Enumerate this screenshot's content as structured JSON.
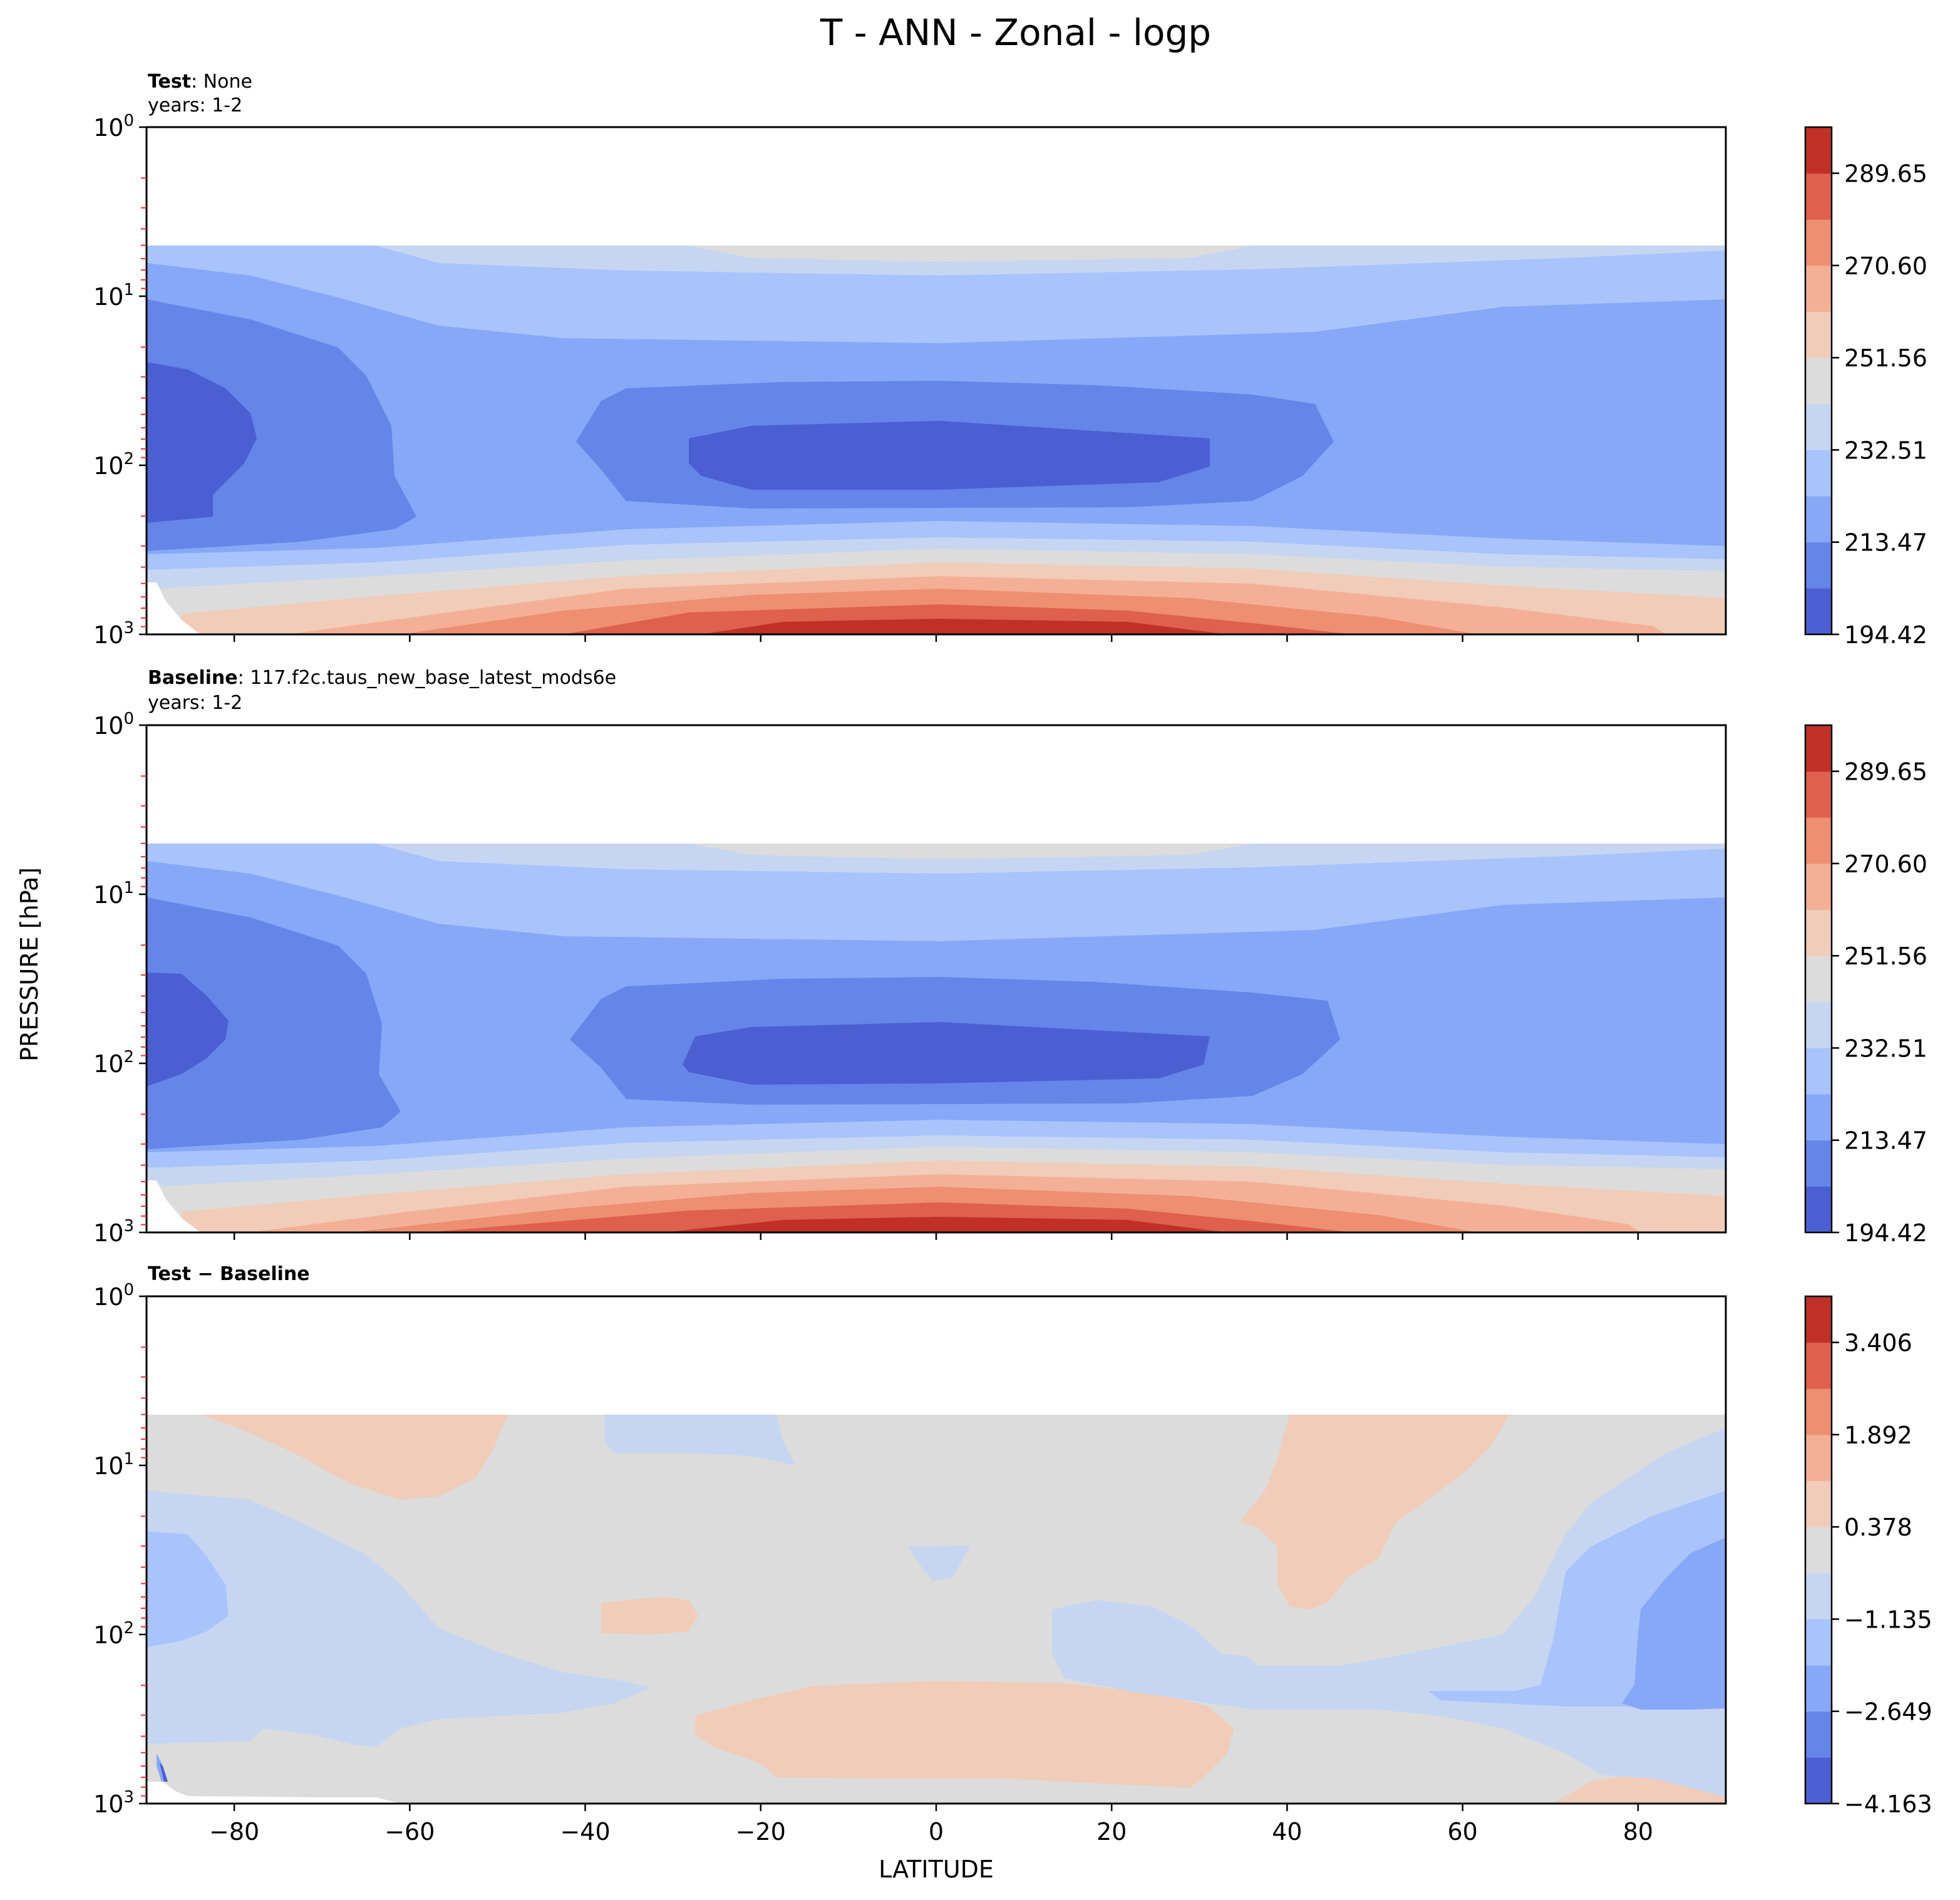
{
  "figure_title": "T - ANN - Zonal - logp",
  "xlabel": "LATITUDE",
  "ylabel": "PRESSURE [hPa]",
  "chart_data": [
    {
      "type": "heatmap",
      "subtype": "filled-contour",
      "panel_title_bold": "Test",
      "panel_title_rest": ": None",
      "panel_subtitle": "years: 1-2",
      "xlim": [
        -90,
        90
      ],
      "ylim": [
        1000,
        1
      ],
      "y_scale": "log",
      "x_ticks": [
        -80,
        -60,
        -40,
        -20,
        0,
        20,
        40,
        60,
        80
      ],
      "y_ticks": [
        {
          "base": "10",
          "exp": "0"
        },
        {
          "base": "10",
          "exp": "1"
        },
        {
          "base": "10",
          "exp": "2"
        },
        {
          "base": "10",
          "exp": "3"
        }
      ],
      "data_top_hpa": 5,
      "colorbar": {
        "levels": [
          194.42,
          213.47,
          232.51,
          251.56,
          270.6,
          289.65
        ],
        "tick_labels": [
          "194.42",
          "213.47",
          "232.51",
          "251.56",
          "270.60",
          "289.65"
        ],
        "colors": [
          "#4a5fd1",
          "#6585e8",
          "#86a8f7",
          "#a8c4fb",
          "#c6d6f2",
          "#dcdcdc",
          "#f1ccb8",
          "#f4b096",
          "#ee8f72",
          "#de604d",
          "#c03026"
        ]
      }
    },
    {
      "type": "heatmap",
      "subtype": "filled-contour",
      "panel_title_bold": "Baseline",
      "panel_title_rest": ": 117.f2c.taus_new_base_latest_mods6e",
      "panel_subtitle": "years: 1-2",
      "xlim": [
        -90,
        90
      ],
      "ylim": [
        1000,
        1
      ],
      "y_scale": "log",
      "x_ticks": [
        -80,
        -60,
        -40,
        -20,
        0,
        20,
        40,
        60,
        80
      ],
      "y_ticks": [
        {
          "base": "10",
          "exp": "0"
        },
        {
          "base": "10",
          "exp": "1"
        },
        {
          "base": "10",
          "exp": "2"
        },
        {
          "base": "10",
          "exp": "3"
        }
      ],
      "data_top_hpa": 5,
      "colorbar": {
        "levels": [
          194.42,
          213.47,
          232.51,
          251.56,
          270.6,
          289.65
        ],
        "tick_labels": [
          "194.42",
          "213.47",
          "232.51",
          "251.56",
          "270.60",
          "289.65"
        ],
        "colors": [
          "#4a5fd1",
          "#6585e8",
          "#86a8f7",
          "#a8c4fb",
          "#c6d6f2",
          "#dcdcdc",
          "#f1ccb8",
          "#f4b096",
          "#ee8f72",
          "#de604d",
          "#c03026"
        ]
      }
    },
    {
      "type": "heatmap",
      "subtype": "filled-contour",
      "panel_title_bold": "Test − Baseline",
      "panel_title_rest": "",
      "panel_subtitle": "",
      "xlim": [
        -90,
        90
      ],
      "ylim": [
        1000,
        1
      ],
      "y_scale": "log",
      "x_ticks": [
        -80,
        -60,
        -40,
        -20,
        0,
        20,
        40,
        60,
        80
      ],
      "x_tick_labels_visible": true,
      "y_ticks": [
        {
          "base": "10",
          "exp": "0"
        },
        {
          "base": "10",
          "exp": "1"
        },
        {
          "base": "10",
          "exp": "2"
        },
        {
          "base": "10",
          "exp": "3"
        }
      ],
      "data_top_hpa": 5,
      "colorbar": {
        "levels": [
          -4.163,
          -2.649,
          -1.135,
          0.378,
          1.892,
          3.406
        ],
        "tick_labels": [
          "−4.163",
          "−2.649",
          "−1.135",
          "0.378",
          "1.892",
          "3.406"
        ],
        "colors": [
          "#4a5fd1",
          "#6585e8",
          "#86a8f7",
          "#a8c4fb",
          "#c6d6f2",
          "#dcdcdc",
          "#f1ccb8",
          "#f4b096",
          "#ee8f72",
          "#de604d",
          "#c03026"
        ]
      }
    }
  ]
}
